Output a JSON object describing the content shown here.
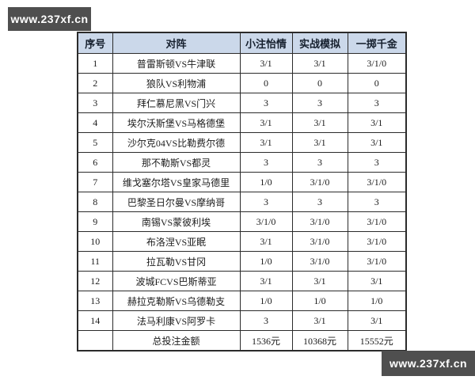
{
  "watermark": {
    "text": "www.237xf.cn"
  },
  "table": {
    "headers": [
      "序号",
      "对阵",
      "小注怡情",
      "实战模拟",
      "一掷千金"
    ],
    "rows": [
      [
        "1",
        "普雷斯顿VS牛津联",
        "3/1",
        "3/1",
        "3/1/0"
      ],
      [
        "2",
        "狼队VS利物浦",
        "0",
        "0",
        "0"
      ],
      [
        "3",
        "拜仁慕尼黑VS门兴",
        "3",
        "3",
        "3"
      ],
      [
        "4",
        "埃尔沃斯堡VS马格德堡",
        "3/1",
        "3/1",
        "3/1"
      ],
      [
        "5",
        "沙尔克04VS比勒费尔德",
        "3/1",
        "3/1",
        "3/1"
      ],
      [
        "6",
        "那不勒斯VS都灵",
        "3",
        "3",
        "3"
      ],
      [
        "7",
        "维戈塞尔塔VS皇家马德里",
        "1/0",
        "3/1/0",
        "3/1/0"
      ],
      [
        "8",
        "巴黎圣日尔曼VS摩纳哥",
        "3",
        "3",
        "3"
      ],
      [
        "9",
        "南锡VS蒙彼利埃",
        "3/1/0",
        "3/1/0",
        "3/1/0"
      ],
      [
        "10",
        "布洛涅VS亚眠",
        "3/1",
        "3/1/0",
        "3/1/0"
      ],
      [
        "11",
        "拉瓦勒VS甘冈",
        "1/0",
        "3/1/0",
        "3/1/0"
      ],
      [
        "12",
        "波城FCVS巴斯蒂亚",
        "3/1",
        "3/1",
        "3/1"
      ],
      [
        "13",
        "赫拉克勒斯VS乌德勒支",
        "1/0",
        "1/0",
        "1/0"
      ],
      [
        "14",
        "法马利康VS阿罗卡",
        "3",
        "3/1",
        "3/1"
      ]
    ],
    "total": {
      "label": "总投注金额",
      "values": [
        "1536元",
        "10368元",
        "15552元"
      ]
    }
  },
  "colors": {
    "header_bg": "#cbd8ea",
    "border": "#2b2b2b",
    "watermark_bg": "#4f4f4f"
  }
}
